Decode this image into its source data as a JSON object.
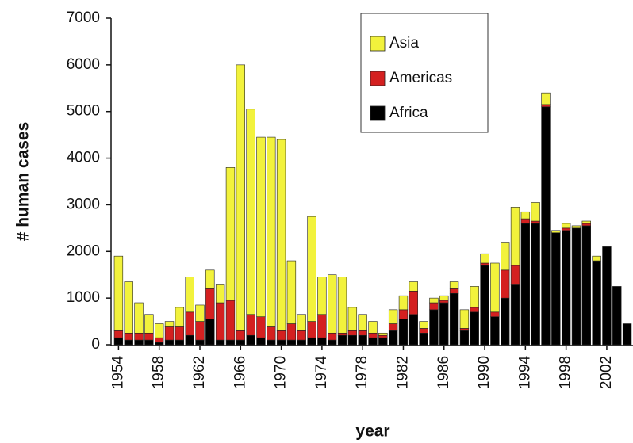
{
  "chart_data": {
    "type": "stacked_bar",
    "x_label": "year",
    "y_label": "# human cases",
    "categories": [
      "1954",
      null,
      null,
      null,
      "1958",
      null,
      null,
      null,
      "1962",
      null,
      null,
      null,
      "1966",
      null,
      null,
      null,
      "1970",
      null,
      null,
      null,
      "1974",
      null,
      null,
      null,
      "1978",
      null,
      null,
      null,
      "1982",
      null,
      null,
      null,
      "1986",
      null,
      null,
      null,
      "1990",
      null,
      null,
      null,
      "1994",
      null,
      null,
      null,
      "1998",
      null,
      null,
      null,
      "2002",
      null,
      null
    ],
    "series": [
      {
        "name": "Africa",
        "color": "#000000",
        "values": [
          150,
          100,
          100,
          100,
          50,
          100,
          100,
          200,
          100,
          550,
          100,
          100,
          100,
          200,
          150,
          100,
          100,
          100,
          100,
          150,
          150,
          100,
          200,
          200,
          200,
          150,
          150,
          300,
          550,
          650,
          250,
          750,
          900,
          1100,
          300,
          700,
          1700,
          600,
          1000,
          1300,
          2600,
          2600,
          5100,
          2400,
          2450,
          2500,
          2550,
          1800,
          2100,
          1250,
          450
        ]
      },
      {
        "name": "Americas",
        "color": "#d42020",
        "values": [
          150,
          150,
          150,
          150,
          100,
          300,
          300,
          500,
          400,
          650,
          800,
          850,
          200,
          450,
          450,
          300,
          200,
          350,
          200,
          350,
          500,
          150,
          50,
          100,
          100,
          100,
          50,
          150,
          200,
          500,
          100,
          150,
          50,
          100,
          50,
          100,
          50,
          100,
          600,
          400,
          100,
          50,
          50,
          0,
          50,
          0,
          50,
          0,
          0,
          0,
          0
        ]
      },
      {
        "name": "Asia",
        "color": "#f2f23c",
        "values": [
          1600,
          1100,
          650,
          400,
          300,
          100,
          400,
          750,
          350,
          400,
          400,
          2850,
          5700,
          4400,
          3850,
          4050,
          4100,
          1350,
          350,
          2250,
          800,
          1250,
          1200,
          500,
          350,
          250,
          50,
          300,
          300,
          200,
          150,
          100,
          100,
          150,
          400,
          450,
          200,
          1050,
          600,
          1250,
          150,
          400,
          250,
          50,
          100,
          50,
          50,
          100,
          0,
          0,
          0
        ]
      }
    ],
    "ylim": [
      0,
      7000
    ],
    "yticks": [
      0,
      1000,
      2000,
      3000,
      4000,
      5000,
      6000,
      7000
    ],
    "legend": "upper center"
  }
}
